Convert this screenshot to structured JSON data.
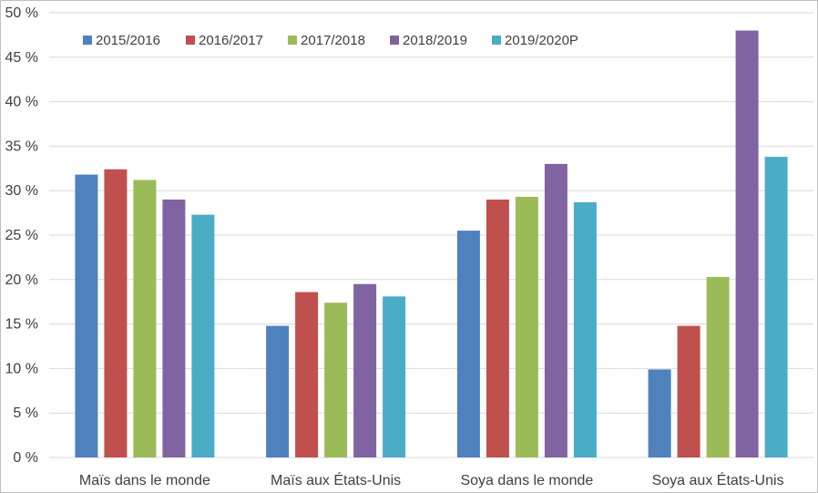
{
  "chart_data": {
    "type": "bar",
    "title": "",
    "xlabel": "",
    "ylabel": "",
    "ylim": [
      0,
      50
    ],
    "ytick_step": 5,
    "y_tick_labels": [
      "0 %",
      "5 %",
      "10 %",
      "15 %",
      "20 %",
      "25 %",
      "30 %",
      "35 %",
      "40 %",
      "45 %",
      "50 %"
    ],
    "grid": true,
    "legend_position": "top-left",
    "categories": [
      "Maïs dans le monde",
      "Maïs aux États-Unis",
      "Soya dans le monde",
      "Soya aux États-Unis"
    ],
    "series": [
      {
        "name": "2015/2016",
        "color": "#4f81bd",
        "values": [
          31.8,
          14.8,
          25.5,
          9.9
        ]
      },
      {
        "name": "2016/2017",
        "color": "#c0504d",
        "values": [
          32.4,
          18.6,
          29.0,
          14.8
        ]
      },
      {
        "name": "2017/2018",
        "color": "#9bbb59",
        "values": [
          31.2,
          17.4,
          29.3,
          20.3
        ]
      },
      {
        "name": "2018/2019",
        "color": "#8064a2",
        "values": [
          29.0,
          19.5,
          33.0,
          48.0
        ]
      },
      {
        "name": "2019/2020P",
        "color": "#4bacc6",
        "values": [
          27.3,
          18.1,
          28.7,
          33.8
        ]
      }
    ]
  }
}
